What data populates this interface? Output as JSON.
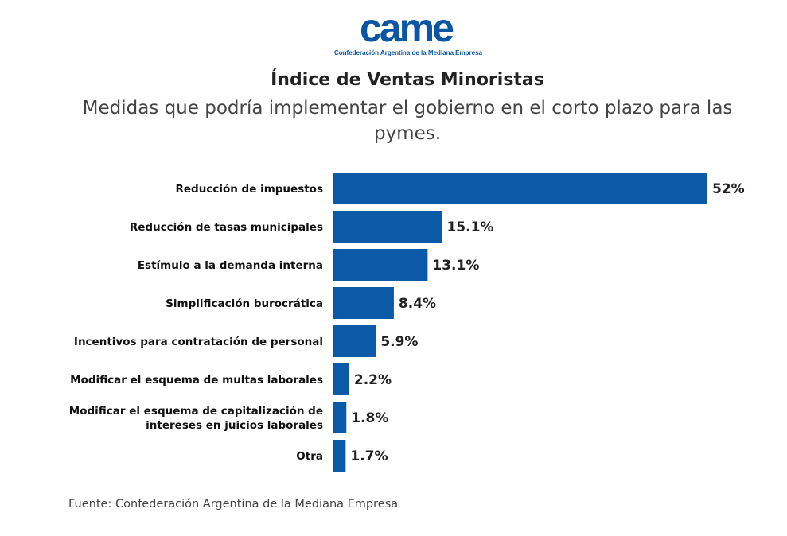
{
  "logo": {
    "mark": "came",
    "text": "Confederación Argentina de la Mediana Empresa"
  },
  "chart_data": {
    "type": "bar",
    "orientation": "horizontal",
    "title": "Índice de Ventas Minoristas",
    "subtitle": "Medidas que podría implementar el gobierno en el corto plazo para las pymes.",
    "categories": [
      "Reducción de impuestos",
      "Reducción de tasas municipales",
      "Estímulo a la demanda interna",
      "Simplificación burocrática",
      "Incentivos para contratación de personal",
      "Modificar el esquema de multas laborales",
      "Modificar el esquema de capitalización de intereses en juicios laborales",
      "Otra"
    ],
    "values": [
      52,
      15.1,
      13.1,
      8.4,
      5.9,
      2.2,
      1.8,
      1.7
    ],
    "labels": [
      "52%",
      "15.1%",
      "13.1%",
      "8.4%",
      "5.9%",
      "2.2%",
      "1.8%",
      "1.7%"
    ],
    "unit": "%",
    "color": "#0b5aa8",
    "grid": false,
    "source": "Fuente: Confederación Argentina de la Mediana Empresa"
  }
}
